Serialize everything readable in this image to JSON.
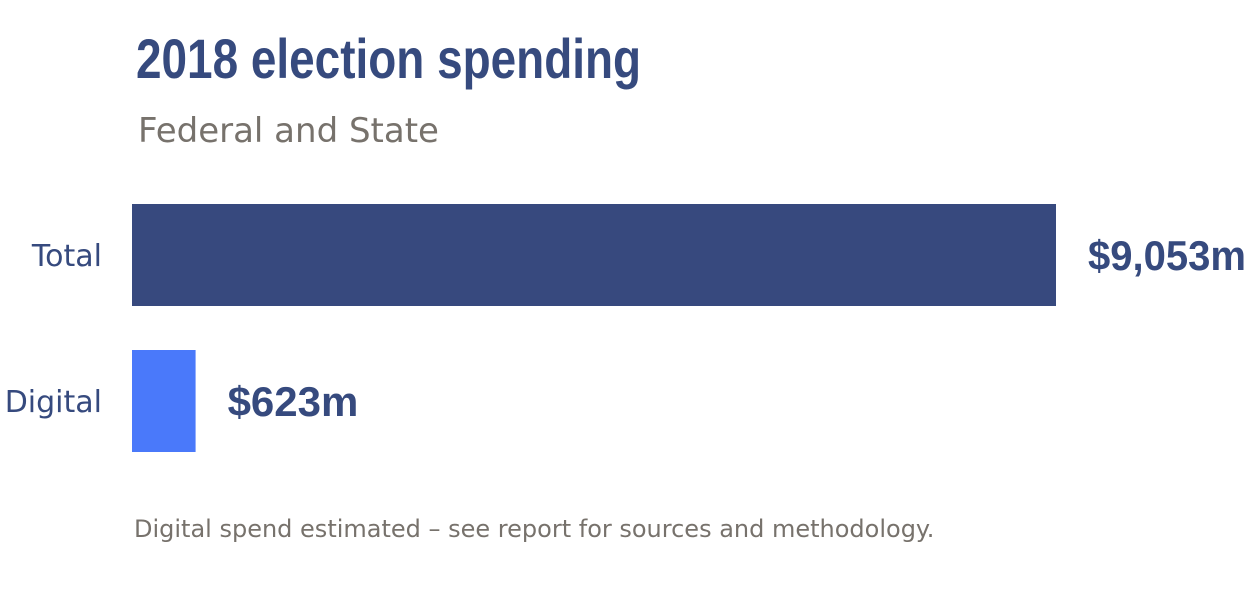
{
  "chart_data": {
    "type": "bar",
    "orientation": "horizontal",
    "title": "2018 election spending",
    "subtitle": "Federal and State",
    "categories": [
      "Total",
      "Digital"
    ],
    "values": [
      9053,
      623
    ],
    "value_labels": [
      "$9,053m",
      "$623m"
    ],
    "unit": "$m",
    "xlim": [
      0,
      9053
    ],
    "grid": false,
    "footnote": "Digital spend estimated – see report for sources and methodology."
  },
  "colors": {
    "title": "#364A7E",
    "subtitle": "#77726C",
    "category_label": "#364A7E",
    "value_label": "#364A7E",
    "footnote": "#77726C",
    "bars": [
      "#37497E",
      "#4A79FA"
    ]
  }
}
